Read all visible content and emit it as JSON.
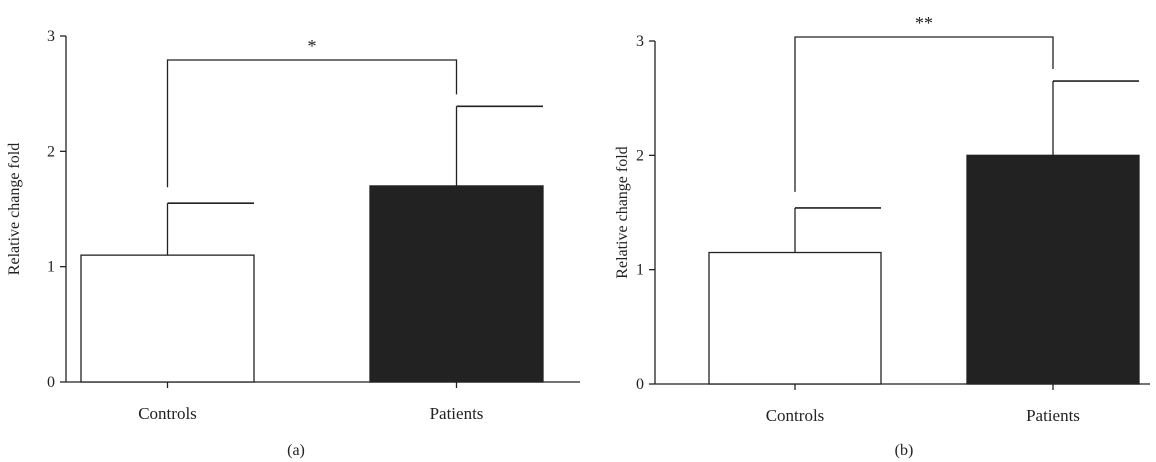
{
  "chart_data": [
    {
      "type": "bar",
      "panel_label": "(a)",
      "categories": [
        "Controls",
        "Patients"
      ],
      "values": [
        1.1,
        1.7
      ],
      "errors": [
        0.45,
        0.69
      ],
      "bar_colors": [
        "#ffffff",
        "#222222"
      ],
      "ylabel": "Relative change fold",
      "xlabel": "",
      "ylim": [
        0,
        3
      ],
      "yticks": [
        "0",
        "1",
        "2",
        "3"
      ],
      "significance": "*",
      "grid": false
    },
    {
      "type": "bar",
      "panel_label": "(b)",
      "categories": [
        "Controls",
        "Patients"
      ],
      "values": [
        1.15,
        2.0
      ],
      "errors": [
        0.39,
        0.65
      ],
      "bar_colors": [
        "#ffffff",
        "#222222"
      ],
      "ylabel": "Relative change fold",
      "xlabel": "",
      "ylim": [
        0,
        3
      ],
      "yticks": [
        "0",
        "1",
        "2",
        "3"
      ],
      "significance": "**",
      "grid": false
    }
  ]
}
